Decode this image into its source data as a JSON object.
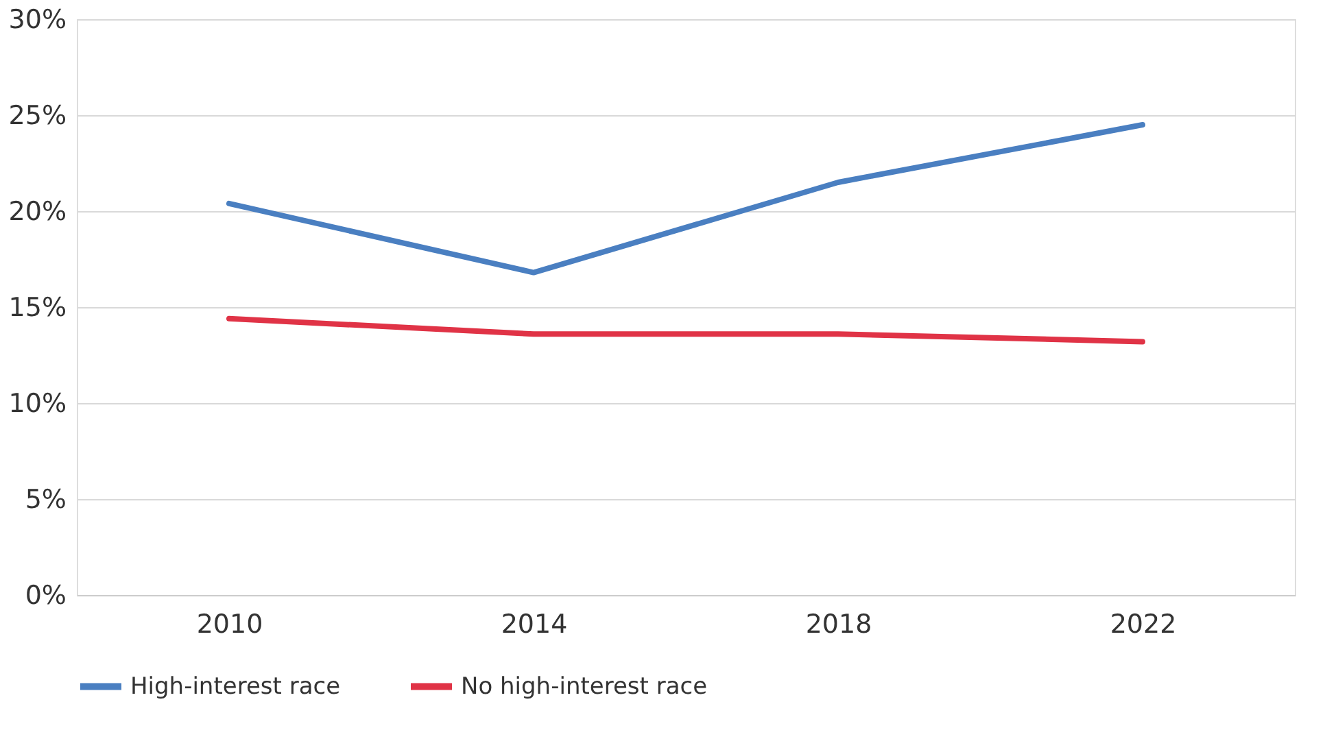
{
  "chart_data": {
    "type": "line",
    "categories": [
      "2010",
      "2014",
      "2018",
      "2022"
    ],
    "series": [
      {
        "name": "High-interest race",
        "color": "#4a7fc1",
        "values": [
          20.4,
          16.8,
          21.5,
          24.5
        ]
      },
      {
        "name": "No high-interest race",
        "color": "#e03346",
        "values": [
          14.4,
          13.6,
          13.6,
          13.2
        ]
      }
    ],
    "ylim": [
      0,
      30
    ],
    "yticks": [
      {
        "value": 0,
        "label": "0%"
      },
      {
        "value": 5,
        "label": "5%"
      },
      {
        "value": 10,
        "label": "10%"
      },
      {
        "value": 15,
        "label": "15%"
      },
      {
        "value": 20,
        "label": "20%"
      },
      {
        "value": 25,
        "label": "25%"
      },
      {
        "value": 30,
        "label": "30%"
      }
    ],
    "grid": "y",
    "legend": "bottom",
    "marker": "none",
    "line_style": "solid"
  }
}
